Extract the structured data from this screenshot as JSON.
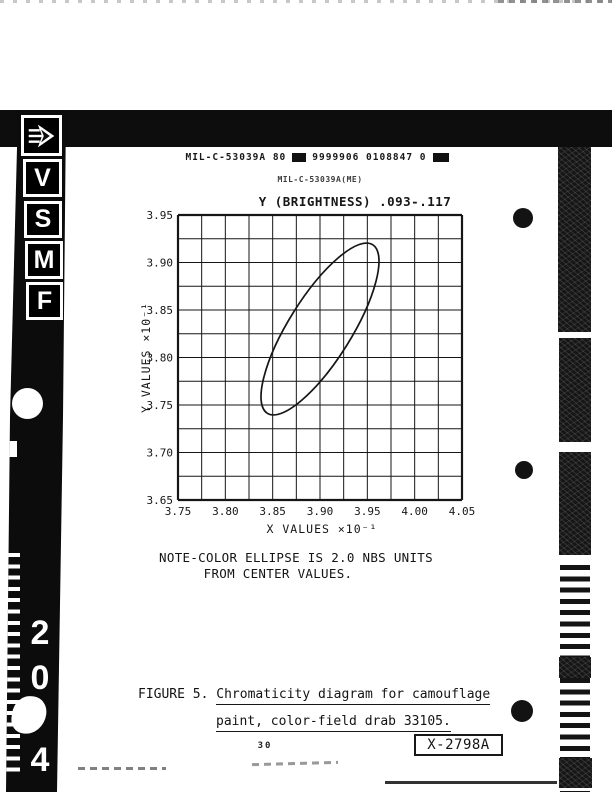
{
  "film_strip": {
    "logo": "vsmf-arrow-logo",
    "letters": [
      "V",
      "S",
      "M",
      "F"
    ],
    "digits": [
      "2",
      "0",
      "4"
    ]
  },
  "header": {
    "line1_left": "MIL-C-53039A 80",
    "line1_right": "9999906 0108847 0",
    "line2": "MIL-C-53039A(ME)"
  },
  "chart_data": {
    "type": "line",
    "subtype": "chromaticity-color-ellipse",
    "title": "Y (BRIGHTNESS) .093-.117",
    "xlabel": "X VALUES",
    "ylabel": "Y VALUES",
    "x_multiplier": "×10⁻¹",
    "y_multiplier": "×10⁻¹",
    "xlim": [
      3.75,
      4.05
    ],
    "ylim": [
      3.65,
      3.95
    ],
    "x_tick_labels": [
      "3.75",
      "3.80",
      "3.85",
      "3.90",
      "3.95",
      "4.00",
      "4.05"
    ],
    "y_tick_labels": [
      "3.95",
      "3.90",
      "3.85",
      "3.80",
      "3.75",
      "3.70",
      "3.65"
    ],
    "grid": true,
    "grid_step": 0.025,
    "ellipse": {
      "center_x": 3.9,
      "center_y": 3.83,
      "semi_major": 0.105,
      "semi_minor": 0.033,
      "angle_deg": 58,
      "size_note": "2.0 NBS units"
    }
  },
  "note": {
    "line1": "NOTE-COLOR ELLIPSE IS 2.0 NBS UNITS",
    "line2": "FROM CENTER VALUES."
  },
  "caption": {
    "label": "FIGURE 5.",
    "line1": "Chromaticity diagram for camouflage",
    "line2": "paint, color-field drab 33105."
  },
  "footer": {
    "page_number": "30",
    "figure_id": "X-2798A"
  },
  "colors": {
    "ink": "#161616",
    "film_black": "#0d0d0d",
    "paper": "#ffffff"
  }
}
